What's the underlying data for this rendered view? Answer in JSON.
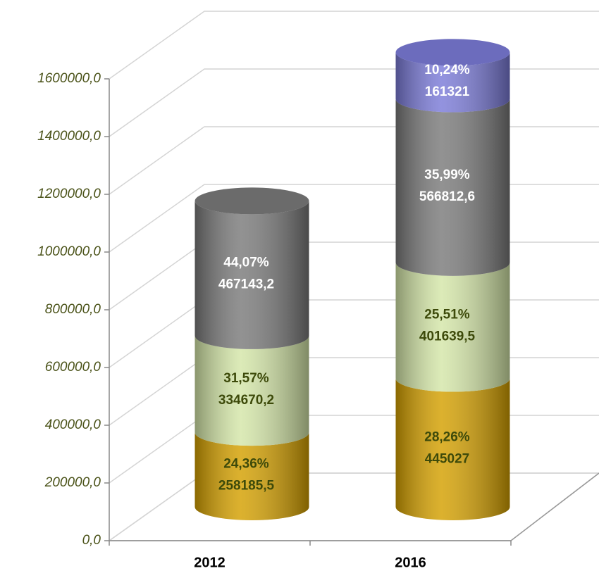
{
  "chart_data": {
    "type": "stacked_cylinder",
    "categories": [
      "2012",
      "2016"
    ],
    "series": [
      {
        "color": "#d4a000",
        "label_color": "#3d4a0a",
        "values": [
          258185.5,
          445027
        ],
        "value_labels": [
          "258185,5",
          "445027"
        ],
        "percent_labels": [
          "24,36%",
          "28,26%"
        ]
      },
      {
        "color": "#d4e6a8",
        "label_color": "#3d4a0a",
        "values": [
          334670.2,
          401639.5
        ],
        "value_labels": [
          "334670,2",
          "401639,5"
        ],
        "percent_labels": [
          "31,57%",
          "25,51%"
        ]
      },
      {
        "color": "#7a7a7a",
        "label_color": "#ffffff",
        "values": [
          467143.2,
          566812.6
        ],
        "value_labels": [
          "467143,2",
          "566812,6"
        ],
        "percent_labels": [
          "44,07%",
          "35,99%"
        ]
      },
      {
        "color": "#7b7bd8",
        "label_color": "#ffffff",
        "values": [
          null,
          161321
        ],
        "value_labels": [
          null,
          "161321"
        ],
        "percent_labels": [
          null,
          "10,24%"
        ]
      }
    ],
    "ylim": [
      0,
      1600000
    ],
    "yticks": [
      {
        "value": 0,
        "label": "0,0"
      },
      {
        "value": 200000,
        "label": "200000,0"
      },
      {
        "value": 400000,
        "label": "400000,0"
      },
      {
        "value": 600000,
        "label": "600000,0"
      },
      {
        "value": 800000,
        "label": "800000,0"
      },
      {
        "value": 1000000,
        "label": "1000000,0"
      },
      {
        "value": 1200000,
        "label": "1200000,0"
      },
      {
        "value": 1400000,
        "label": "1400000,0"
      },
      {
        "value": 1600000,
        "label": "1600000,0"
      }
    ],
    "grid": true
  }
}
